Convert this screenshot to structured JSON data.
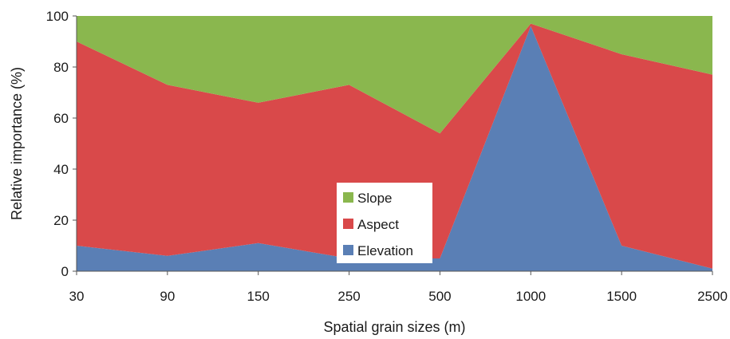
{
  "chart_data": {
    "type": "area",
    "stacked": true,
    "categories": [
      "30",
      "90",
      "150",
      "250",
      "500",
      "1000",
      "1500",
      "2500"
    ],
    "series": [
      {
        "name": "Elevation",
        "color": "#5a7fb5",
        "values": [
          10,
          6,
          11,
          5,
          5,
          96,
          10,
          1
        ]
      },
      {
        "name": "Aspect",
        "color": "#d9494a",
        "values": [
          80,
          67,
          55,
          68,
          49,
          1,
          75,
          76
        ]
      },
      {
        "name": "Slope",
        "color": "#8ab74e",
        "values": [
          10,
          27,
          34,
          27,
          46,
          3,
          15,
          23
        ]
      }
    ],
    "xlabel": "Spatial grain sizes (m)",
    "ylabel": "Relative importance (%)",
    "ylim": [
      0,
      100
    ],
    "yticks": [
      "0",
      "20",
      "40",
      "60",
      "80",
      "100"
    ],
    "legend_order": [
      "Slope",
      "Aspect",
      "Elevation"
    ],
    "legend_position": "bottom-center-left",
    "grid": false
  }
}
